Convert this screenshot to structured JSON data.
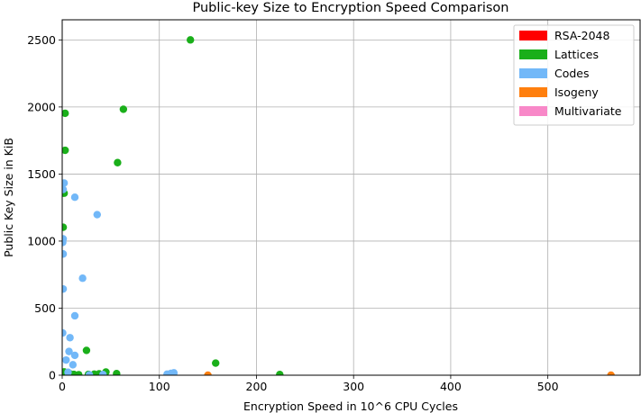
{
  "chart_data": {
    "type": "scatter",
    "title": "Public-key Size to Encryption Speed Comparison",
    "xlabel": "Encryption Speed in 10^6 CPU Cycles",
    "ylabel": "Public Key Size in KiB",
    "xlim": [
      0,
      595
    ],
    "ylim": [
      0,
      2650
    ],
    "xticks": [
      0,
      100,
      200,
      300,
      400,
      500
    ],
    "yticks": [
      0,
      500,
      1000,
      1500,
      2000,
      2500
    ],
    "grid": true,
    "legend_position": "top-right",
    "series": [
      {
        "name": "RSA-2048",
        "color": "#ff0000",
        "points": [
          [
            1.5,
            0.3
          ]
        ]
      },
      {
        "name": "Lattices",
        "color": "#1aaf1a",
        "points": [
          [
            132,
            2500
          ],
          [
            63,
            1983
          ],
          [
            3,
            1953
          ],
          [
            3,
            1677
          ],
          [
            57,
            1585
          ],
          [
            2,
            1357
          ],
          [
            1,
            1103
          ],
          [
            158,
            90
          ],
          [
            25,
            185
          ],
          [
            2,
            25
          ],
          [
            4,
            18
          ],
          [
            8,
            10
          ],
          [
            12,
            6
          ],
          [
            17,
            4
          ],
          [
            27,
            6
          ],
          [
            33,
            8
          ],
          [
            38,
            10
          ],
          [
            45,
            24
          ],
          [
            56,
            12
          ],
          [
            224,
            5
          ]
        ]
      },
      {
        "name": "Codes",
        "color": "#72b8f8",
        "points": [
          [
            2,
            1433
          ],
          [
            1,
            1385
          ],
          [
            13,
            1327
          ],
          [
            36,
            1197
          ],
          [
            1,
            1017
          ],
          [
            0.5,
            990
          ],
          [
            1,
            904
          ],
          [
            21,
            723
          ],
          [
            1,
            643
          ],
          [
            13,
            443
          ],
          [
            0.5,
            315
          ],
          [
            8,
            280
          ],
          [
            7,
            177
          ],
          [
            13,
            148
          ],
          [
            4,
            113
          ],
          [
            11,
            78
          ],
          [
            6,
            22
          ],
          [
            108,
            8
          ],
          [
            112,
            14
          ],
          [
            115,
            18
          ],
          [
            28,
            3
          ],
          [
            42,
            5
          ]
        ]
      },
      {
        "name": "Isogeny",
        "color": "#ff7f0e",
        "points": [
          [
            150,
            0.5
          ],
          [
            565,
            0.5
          ]
        ]
      },
      {
        "name": "Multivariate",
        "color": "#f888c8",
        "points": []
      }
    ]
  }
}
